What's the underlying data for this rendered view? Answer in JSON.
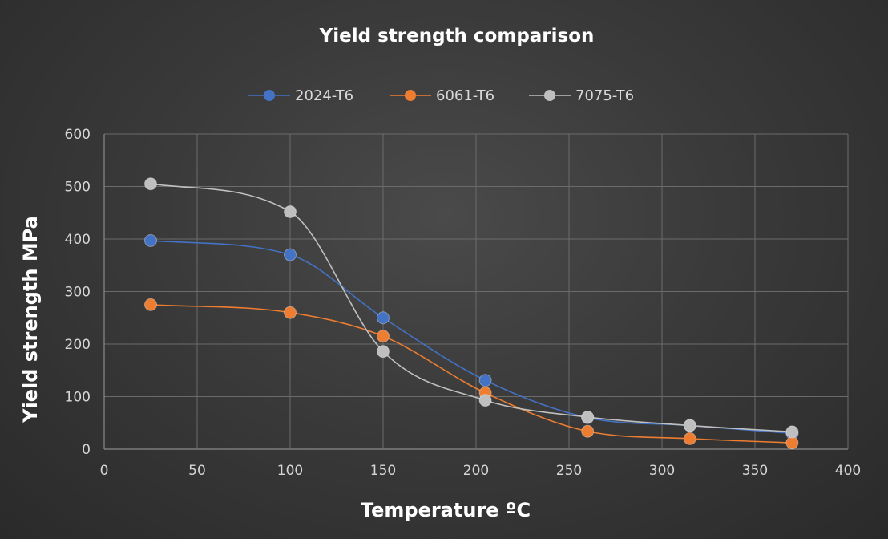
{
  "chart_data": {
    "type": "line",
    "title": "Yield strength comparison",
    "xlabel": "Temperature  ºC",
    "ylabel": "Yield strength  MPa",
    "xlim": [
      0,
      400
    ],
    "ylim": [
      0,
      600
    ],
    "x_ticks": [
      0,
      50,
      100,
      150,
      200,
      250,
      300,
      350,
      400
    ],
    "y_ticks": [
      0,
      100,
      200,
      300,
      400,
      500,
      600
    ],
    "grid": true,
    "legend_position": "top",
    "smooth": true,
    "series": [
      {
        "name": "2024-T6",
        "color": "#4472c4",
        "x": [
          25,
          100,
          150,
          205,
          260,
          315,
          370
        ],
        "y": [
          397,
          370,
          250,
          131,
          60,
          45,
          30
        ]
      },
      {
        "name": "6061-T6",
        "color": "#ed7d31",
        "x": [
          25,
          100,
          150,
          205,
          260,
          315,
          370
        ],
        "y": [
          275,
          260,
          215,
          107,
          34,
          20,
          12
        ]
      },
      {
        "name": "7075-T6",
        "color": "#bfbfbf",
        "x": [
          25,
          100,
          150,
          205,
          260,
          315,
          370
        ],
        "y": [
          505,
          452,
          186,
          93,
          61,
          45,
          33
        ]
      }
    ]
  }
}
